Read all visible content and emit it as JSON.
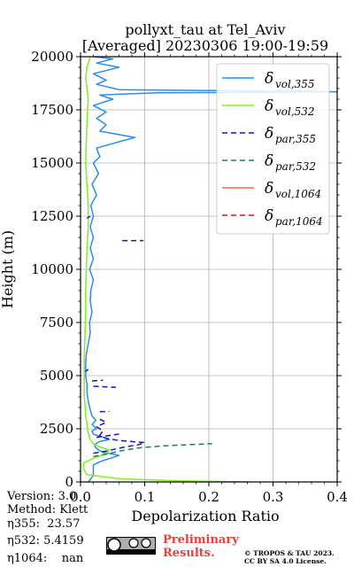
{
  "chart_data": {
    "type": "line",
    "title": "pollyxt_tau at Tel_Aviv",
    "subtitle": "[Averaged] 20230306 19:00-19:59",
    "xlabel": "Depolarization Ratio",
    "ylabel": "Height (m)",
    "xlim": [
      0,
      0.4
    ],
    "ylim": [
      0,
      20000
    ],
    "xticks": [
      "0.0",
      "0.1",
      "0.2",
      "0.3",
      "0.4"
    ],
    "yticks": [
      "0",
      "2500",
      "5000",
      "7500",
      "10000",
      "12500",
      "15000",
      "17500",
      "20000"
    ],
    "grid": true,
    "legend_position": "top-right",
    "series": [
      {
        "name": "δ_vol,355",
        "legend_main": "δ",
        "legend_sub": "vol,355",
        "color": "#2a8de8",
        "dash": "solid",
        "points": [
          [
            0.012,
            0
          ],
          [
            0.02,
            300
          ],
          [
            0.02,
            600
          ],
          [
            0.02,
            800
          ],
          [
            0.03,
            950
          ],
          [
            0.04,
            1050
          ],
          [
            0.05,
            1150
          ],
          [
            0.06,
            1250
          ],
          [
            0.035,
            1400
          ],
          [
            0.028,
            1500
          ],
          [
            0.024,
            1600
          ],
          [
            0.022,
            1700
          ],
          [
            0.024,
            1800
          ],
          [
            0.03,
            1900
          ],
          [
            0.045,
            2000
          ],
          [
            0.03,
            2150
          ],
          [
            0.02,
            2250
          ],
          [
            0.018,
            2400
          ],
          [
            0.025,
            2500
          ],
          [
            0.018,
            2700
          ],
          [
            0.024,
            2900
          ],
          [
            0.018,
            3100
          ],
          [
            0.015,
            3400
          ],
          [
            0.012,
            3800
          ],
          [
            0.01,
            4200
          ],
          [
            0.01,
            4600
          ],
          [
            0.008,
            5000
          ],
          [
            0.008,
            5500
          ],
          [
            0.009,
            6000
          ],
          [
            0.012,
            6500
          ],
          [
            0.015,
            7000
          ],
          [
            0.014,
            7500
          ],
          [
            0.018,
            8000
          ],
          [
            0.015,
            8500
          ],
          [
            0.016,
            9000
          ],
          [
            0.02,
            9500
          ],
          [
            0.014,
            10000
          ],
          [
            0.02,
            10500
          ],
          [
            0.015,
            11000
          ],
          [
            0.02,
            11500
          ],
          [
            0.015,
            12000
          ],
          [
            0.02,
            12500
          ],
          [
            0.016,
            13000
          ],
          [
            0.025,
            13500
          ],
          [
            0.018,
            14000
          ],
          [
            0.028,
            14500
          ],
          [
            0.02,
            15000
          ],
          [
            0.03,
            15300
          ],
          [
            0.025,
            15700
          ],
          [
            0.06,
            16000
          ],
          [
            0.085,
            16200
          ],
          [
            0.03,
            16500
          ],
          [
            0.04,
            16800
          ],
          [
            0.025,
            17100
          ],
          [
            0.04,
            17400
          ],
          [
            0.02,
            17700
          ],
          [
            0.05,
            18000
          ],
          [
            0.03,
            18200
          ],
          [
            0.12,
            18300
          ],
          [
            0.4,
            18350
          ],
          [
            0.06,
            18450
          ],
          [
            0.025,
            18700
          ],
          [
            0.04,
            18900
          ],
          [
            0.02,
            19200
          ],
          [
            0.06,
            19500
          ],
          [
            0.025,
            19700
          ],
          [
            0.05,
            19900
          ],
          [
            0.02,
            20000
          ]
        ]
      },
      {
        "name": "δ_vol,532",
        "legend_main": "δ",
        "legend_sub": "vol,532",
        "color": "#7ef21c",
        "dash": "solid",
        "points": [
          [
            0.265,
            0
          ],
          [
            0.15,
            50
          ],
          [
            0.06,
            150
          ],
          [
            0.01,
            350
          ],
          [
            0.005,
            600
          ],
          [
            0.005,
            900
          ],
          [
            0.02,
            1100
          ],
          [
            0.04,
            1350
          ],
          [
            0.045,
            1500
          ],
          [
            0.03,
            1650
          ],
          [
            0.02,
            1800
          ],
          [
            0.015,
            2000
          ],
          [
            0.012,
            2300
          ],
          [
            0.01,
            2700
          ],
          [
            0.008,
            3100
          ],
          [
            0.007,
            3600
          ],
          [
            0.006,
            4000
          ],
          [
            0.006,
            5000
          ],
          [
            0.006,
            6000
          ],
          [
            0.007,
            7000
          ],
          [
            0.008,
            8000
          ],
          [
            0.008,
            9000
          ],
          [
            0.009,
            10000
          ],
          [
            0.01,
            11000
          ],
          [
            0.012,
            12000
          ],
          [
            0.012,
            13000
          ],
          [
            0.01,
            14000
          ],
          [
            0.008,
            15000
          ],
          [
            0.009,
            16000
          ],
          [
            0.01,
            17000
          ],
          [
            0.012,
            18000
          ],
          [
            0.01,
            18500
          ],
          [
            0.008,
            19000
          ],
          [
            0.01,
            19500
          ],
          [
            0.015,
            20000
          ]
        ]
      },
      {
        "name": "δ_par,355",
        "legend_main": "δ",
        "legend_sub": "par,355",
        "color": "#1414c8",
        "dash": "6,4",
        "points": [
          [
            0.02,
            1350
          ],
          [
            0.04,
            1450
          ],
          [
            0.055,
            1550
          ],
          [
            0.07,
            1650
          ],
          [
            0.09,
            1750
          ],
          [
            0.1,
            1850
          ],
          [
            0.06,
            1950
          ],
          [
            0.04,
            2050
          ],
          [
            0.03,
            2200
          ],
          [
            0.035,
            2400
          ],
          [
            0.025,
            2600
          ],
          [
            0.04,
            2800
          ],
          [
            0.03,
            2950
          ]
        ]
      },
      {
        "name": "δ_par,532",
        "legend_main": "δ",
        "legend_sub": "par,532",
        "color": "#14845a",
        "dash": "6,4",
        "points": [
          [
            0.02,
            1200
          ],
          [
            0.04,
            1300
          ],
          [
            0.06,
            1450
          ],
          [
            0.09,
            1600
          ],
          [
            0.13,
            1700
          ],
          [
            0.205,
            1800
          ]
        ]
      },
      {
        "name": "δ_vol,1064",
        "legend_main": "δ",
        "legend_sub": "vol,1064",
        "color": "#ef6b4a",
        "dash": "solid",
        "points": []
      },
      {
        "name": "δ_par,1064",
        "legend_main": "δ",
        "legend_sub": "par,1064",
        "color": "#d0141e",
        "dash": "6,4",
        "points": []
      }
    ],
    "par355_segments": [
      [
        [
          0.065,
          11350
        ],
        [
          0.098,
          11350
        ]
      ],
      [
        [
          0.02,
          4500
        ],
        [
          0.055,
          4450
        ]
      ],
      [
        [
          0.018,
          4750
        ],
        [
          0.035,
          4780
        ]
      ],
      [
        [
          0.008,
          5200
        ],
        [
          0.012,
          5300
        ]
      ],
      [
        [
          0.03,
          3300
        ],
        [
          0.045,
          3320
        ]
      ],
      [
        [
          0.01,
          12400
        ],
        [
          0.015,
          12500
        ]
      ],
      [
        [
          0.025,
          2100
        ],
        [
          0.06,
          2250
        ]
      ]
    ]
  },
  "footer": {
    "version": "Version: 3.0",
    "method": "Method: Klett",
    "eta355": "η355:  23.57",
    "eta532": "η532: 5.4159",
    "eta1064": "η1064:    nan",
    "preliminary_1": "Preliminary",
    "preliminary_2": "Results.",
    "copyright_1": "© TROPOS & TAU 2023.",
    "copyright_2": "CC BY SA 4.0 License."
  }
}
